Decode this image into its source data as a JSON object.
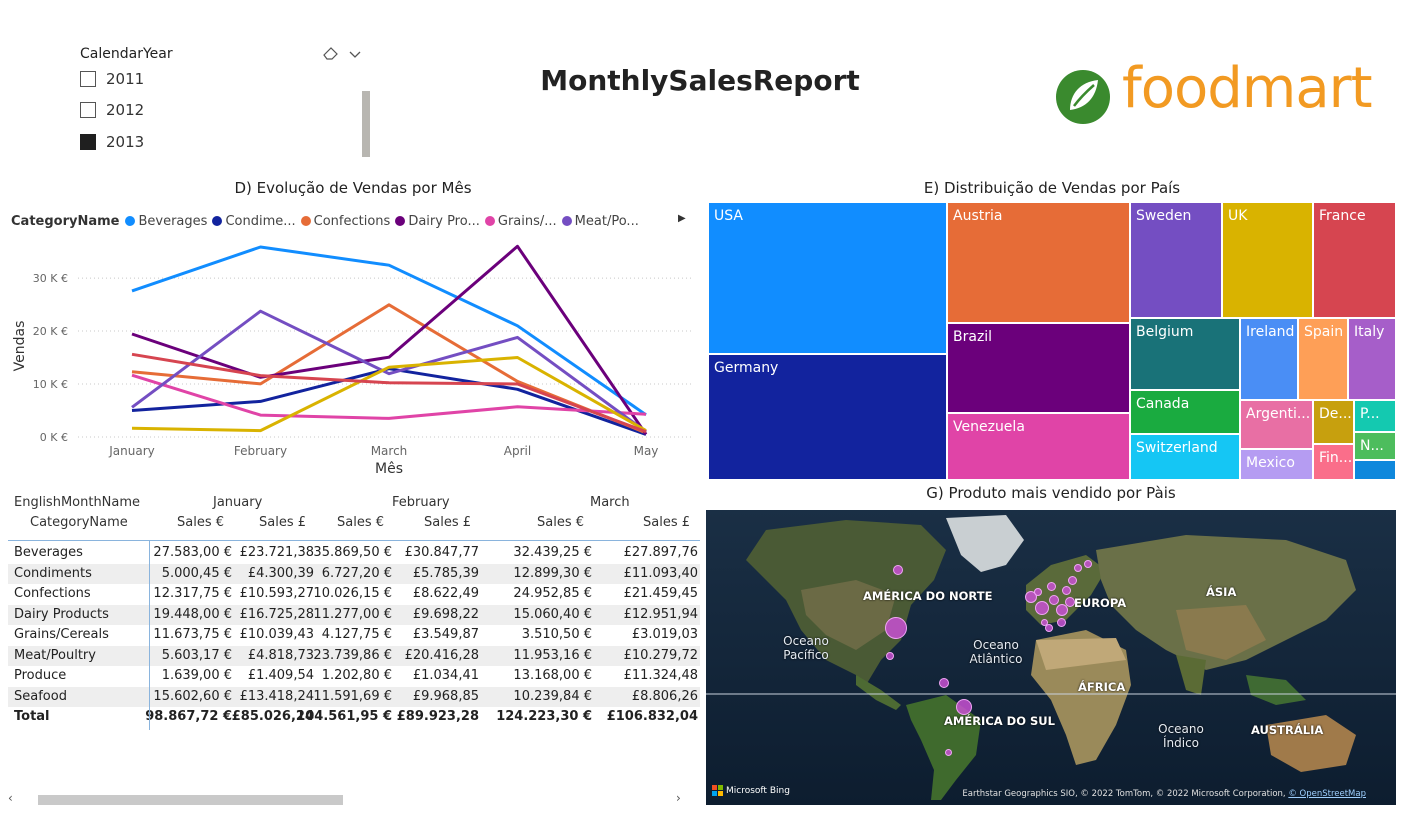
{
  "report": {
    "title": "MonthlySalesReport"
  },
  "logo": {
    "text": "foodmart",
    "brand_color": "#f29a22",
    "icon_color": "#3a8a2e"
  },
  "slicer": {
    "title": "CalendarYear",
    "items": [
      {
        "label": "2011",
        "checked": false
      },
      {
        "label": "2012",
        "checked": false
      },
      {
        "label": "2013",
        "checked": true
      }
    ],
    "eraser_icon": "eraser-icon",
    "dropdown_icon": "chevron-down-icon"
  },
  "line_chart": {
    "title": "D) Evolução de Vendas por Mês",
    "legend_title": "CategoryName",
    "legend": [
      {
        "label": "Beverages",
        "color": "#118dff"
      },
      {
        "label": "Condime...",
        "color": "#12239e"
      },
      {
        "label": "Confections",
        "color": "#e66c37"
      },
      {
        "label": "Dairy Pro...",
        "color": "#6b007b"
      },
      {
        "label": "Grains/...",
        "color": "#e044a7"
      },
      {
        "label": "Meat/Po...",
        "color": "#744ec2"
      }
    ]
  },
  "chart_data": {
    "type": "line",
    "title": "D) Evolução de Vendas por Mês",
    "xlabel": "Mês",
    "ylabel": "Vendas",
    "categories": [
      "January",
      "February",
      "March",
      "April",
      "May"
    ],
    "y_ticks": [
      "0 K €",
      "10 K €",
      "20 K €",
      "30 K €"
    ],
    "ylim": [
      0,
      37000
    ],
    "grid": true,
    "legend_position": "top",
    "series": [
      {
        "name": "Beverages",
        "color": "#118dff",
        "values": [
          27583,
          35870,
          32439,
          21000,
          4200
        ]
      },
      {
        "name": "Condiments",
        "color": "#12239e",
        "values": [
          5000,
          6727,
          12899,
          9000,
          500
        ]
      },
      {
        "name": "Confections",
        "color": "#e66c37",
        "values": [
          12318,
          10026,
          24953,
          10500,
          800
        ]
      },
      {
        "name": "Dairy Products",
        "color": "#6b007b",
        "values": [
          19448,
          11277,
          15060,
          36000,
          500
        ]
      },
      {
        "name": "Grains/Cereals",
        "color": "#e044a7",
        "values": [
          11674,
          4128,
          3511,
          5700,
          4300
        ]
      },
      {
        "name": "Meat/Poultry",
        "color": "#744ec2",
        "values": [
          5603,
          23740,
          11953,
          18800,
          1000
        ]
      },
      {
        "name": "Produce",
        "color": "#d9b300",
        "values": [
          1639,
          1203,
          13168,
          15000,
          1200
        ]
      },
      {
        "name": "Seafood",
        "color": "#d64550",
        "values": [
          15603,
          11592,
          10240,
          10000,
          1000
        ]
      }
    ]
  },
  "matrix": {
    "row_header_1": "EnglishMonthName",
    "row_header_2": "CategoryName",
    "months": [
      "January",
      "February",
      "March"
    ],
    "measures": [
      "Sales €",
      "Sales £",
      "Sales €",
      "Sales £",
      "Sales €",
      "Sales £"
    ],
    "rows": [
      {
        "name": "Beverages",
        "values": [
          "27.583,00 €",
          "£23.721,38",
          "35.869,50 €",
          "£30.847,77",
          "32.439,25 €",
          "£27.897,76"
        ]
      },
      {
        "name": "Condiments",
        "values": [
          "5.000,45 €",
          "£4.300,39",
          "6.727,20 €",
          "£5.785,39",
          "12.899,30 €",
          "£11.093,40"
        ]
      },
      {
        "name": "Confections",
        "values": [
          "12.317,75 €",
          "£10.593,27",
          "10.026,15 €",
          "£8.622,49",
          "24.952,85 €",
          "£21.459,45"
        ]
      },
      {
        "name": "Dairy Products",
        "values": [
          "19.448,00 €",
          "£16.725,28",
          "11.277,00 €",
          "£9.698,22",
          "15.060,40 €",
          "£12.951,94"
        ]
      },
      {
        "name": "Grains/Cereals",
        "values": [
          "11.673,75 €",
          "£10.039,43",
          "4.127,75 €",
          "£3.549,87",
          "3.510,50 €",
          "£3.019,03"
        ]
      },
      {
        "name": "Meat/Poultry",
        "values": [
          "5.603,17 €",
          "£4.818,73",
          "23.739,86 €",
          "£20.416,28",
          "11.953,16 €",
          "£10.279,72"
        ]
      },
      {
        "name": "Produce",
        "values": [
          "1.639,00 €",
          "£1.409,54",
          "1.202,80 €",
          "£1.034,41",
          "13.168,00 €",
          "£11.324,48"
        ]
      },
      {
        "name": "Seafood",
        "values": [
          "15.602,60 €",
          "£13.418,24",
          "11.591,69 €",
          "£9.968,85",
          "10.239,84 €",
          "£8.806,26"
        ]
      }
    ],
    "total": {
      "name": "Total",
      "values": [
        "98.867,72 €",
        "£85.026,24",
        "104.561,95 €",
        "£89.923,28",
        "124.223,30 €",
        "£106.832,04"
      ]
    }
  },
  "treemap": {
    "title": "E) Distribuição de Vendas por País",
    "cells": [
      {
        "label": "USA",
        "color": "#118dff"
      },
      {
        "label": "Germany",
        "color": "#12239e"
      },
      {
        "label": "Austria",
        "color": "#e66c37"
      },
      {
        "label": "Brazil",
        "color": "#6b007b"
      },
      {
        "label": "Venezuela",
        "color": "#e044a7"
      },
      {
        "label": "Sweden",
        "color": "#744ec2"
      },
      {
        "label": "UK",
        "color": "#d9b300"
      },
      {
        "label": "France",
        "color": "#d64550"
      },
      {
        "label": "Belgium",
        "color": "#197278"
      },
      {
        "label": "Ireland",
        "color": "#4a8ef5"
      },
      {
        "label": "Spain",
        "color": "#fe9f57"
      },
      {
        "label": "Italy",
        "color": "#a65ec9"
      },
      {
        "label": "Canada",
        "color": "#1aab40"
      },
      {
        "label": "Argenti...",
        "color": "#e86fa4"
      },
      {
        "label": "De...",
        "color": "#c7a00e"
      },
      {
        "label": "P...",
        "color": "#14c9b0"
      },
      {
        "label": "Switzerland",
        "color": "#15c6f4"
      },
      {
        "label": "Mexico",
        "color": "#b59cf2"
      },
      {
        "label": "Fin...",
        "color": "#fa6e8a"
      },
      {
        "label": "N...",
        "color": "#4dbd5d"
      },
      {
        "label": "",
        "color": "#0f88dc"
      }
    ]
  },
  "map": {
    "title": "G) Produto mais vendido por Pàis",
    "labels": {
      "north_america": "AMÉRICA DO NORTE",
      "europe": "EUROPA",
      "asia": "ÁSIA",
      "africa": "ÁFRICA",
      "south_america": "AMÉRICA DO SUL",
      "australia": "AUSTRÁLIA"
    },
    "oceans": {
      "pacific": "Oceano Pacífico",
      "atlantic": "Oceano Atlântico",
      "indian": "Oceano Índico"
    },
    "bing": "Microsoft Bing",
    "credits": "Earthstar Geographics SIO, © 2022 TomTom, © 2022 Microsoft Corporation,",
    "credits_link": "© OpenStreetMap"
  }
}
